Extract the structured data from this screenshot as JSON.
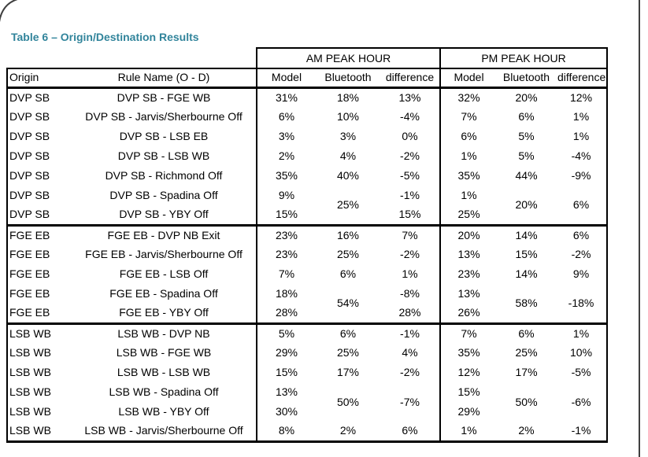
{
  "title": "Table 6 – Origin/Destination Results",
  "colors": {
    "title_accent": "#31849b",
    "table_border": "#000000",
    "page_border": "#3f3f3f"
  },
  "table": {
    "span_headers": [
      {
        "label": "",
        "colspan": 2
      },
      {
        "label": "AM PEAK HOUR",
        "colspan": 3
      },
      {
        "label": "PM PEAK HOUR",
        "colspan": 3
      }
    ],
    "columns": [
      "Origin",
      "Rule Name (O - D)",
      "Model",
      "Bluetooth",
      "difference",
      "Model",
      "Bluetooth",
      "difference"
    ],
    "groups": [
      {
        "name": "DVP SB",
        "rows": [
          [
            "DVP SB",
            "DVP SB - FGE WB",
            "31%",
            "18%",
            "13%",
            "32%",
            "20%",
            "12%"
          ],
          [
            "DVP SB",
            "DVP SB - Jarvis/Sherbourne Off",
            "6%",
            "10%",
            "-4%",
            "7%",
            "6%",
            "1%"
          ],
          [
            "DVP SB",
            "DVP SB - LSB EB",
            "3%",
            "3%",
            "0%",
            "6%",
            "5%",
            "1%"
          ],
          [
            "DVP SB",
            "DVP SB - LSB WB",
            "2%",
            "4%",
            "-2%",
            "1%",
            "5%",
            "-4%"
          ],
          [
            "DVP SB",
            "DVP SB - Richmond Off",
            "35%",
            "40%",
            "-5%",
            "35%",
            "44%",
            "-9%"
          ],
          [
            "DVP SB",
            "DVP SB - Spadina Off",
            "9%",
            {
              "v": "25%",
              "rs": 2
            },
            "-1%",
            "1%",
            {
              "v": "20%",
              "rs": 2
            },
            {
              "v": "6%",
              "rs": 2
            }
          ],
          [
            "DVP SB",
            "DVP SB - YBY Off",
            "15%",
            null,
            "15%",
            "25%",
            null,
            null
          ]
        ]
      },
      {
        "name": "FGE EB",
        "rows": [
          [
            "FGE EB",
            "FGE EB - DVP NB Exit",
            "23%",
            "16%",
            "7%",
            "20%",
            "14%",
            "6%"
          ],
          [
            "FGE EB",
            "FGE EB - Jarvis/Sherbourne Off",
            "23%",
            "25%",
            "-2%",
            "13%",
            "15%",
            "-2%"
          ],
          [
            "FGE EB",
            "FGE EB - LSB Off",
            "7%",
            "6%",
            "1%",
            "23%",
            "14%",
            "9%"
          ],
          [
            "FGE EB",
            "FGE EB - Spadina Off",
            "18%",
            {
              "v": "54%",
              "rs": 2
            },
            "-8%",
            "13%",
            {
              "v": "58%",
              "rs": 2
            },
            {
              "v": "-18%",
              "rs": 2
            }
          ],
          [
            "FGE EB",
            "FGE EB - YBY Off",
            "28%",
            null,
            "28%",
            "26%",
            null,
            null
          ]
        ]
      },
      {
        "name": "LSB WB",
        "rows": [
          [
            "LSB WB",
            "LSB WB - DVP NB",
            "5%",
            "6%",
            "-1%",
            "7%",
            "6%",
            "1%"
          ],
          [
            "LSB WB",
            "LSB WB - FGE WB",
            "29%",
            "25%",
            "4%",
            "35%",
            "25%",
            "10%"
          ],
          [
            "LSB WB",
            "LSB WB - LSB WB",
            "15%",
            "17%",
            "-2%",
            "12%",
            "17%",
            "-5%"
          ],
          [
            "LSB WB",
            "LSB WB - Spadina Off",
            "13%",
            {
              "v": "50%",
              "rs": 2
            },
            {
              "v": "-7%",
              "rs": 2
            },
            "15%",
            {
              "v": "50%",
              "rs": 2
            },
            {
              "v": "-6%",
              "rs": 2
            }
          ],
          [
            "LSB WB",
            "LSB WB - YBY Off",
            "30%",
            null,
            null,
            "29%",
            null,
            null
          ],
          [
            "LSB WB",
            "LSB WB - Jarvis/Sherbourne Off",
            "8%",
            "2%",
            "6%",
            "1%",
            "2%",
            "-1%"
          ]
        ]
      }
    ]
  }
}
